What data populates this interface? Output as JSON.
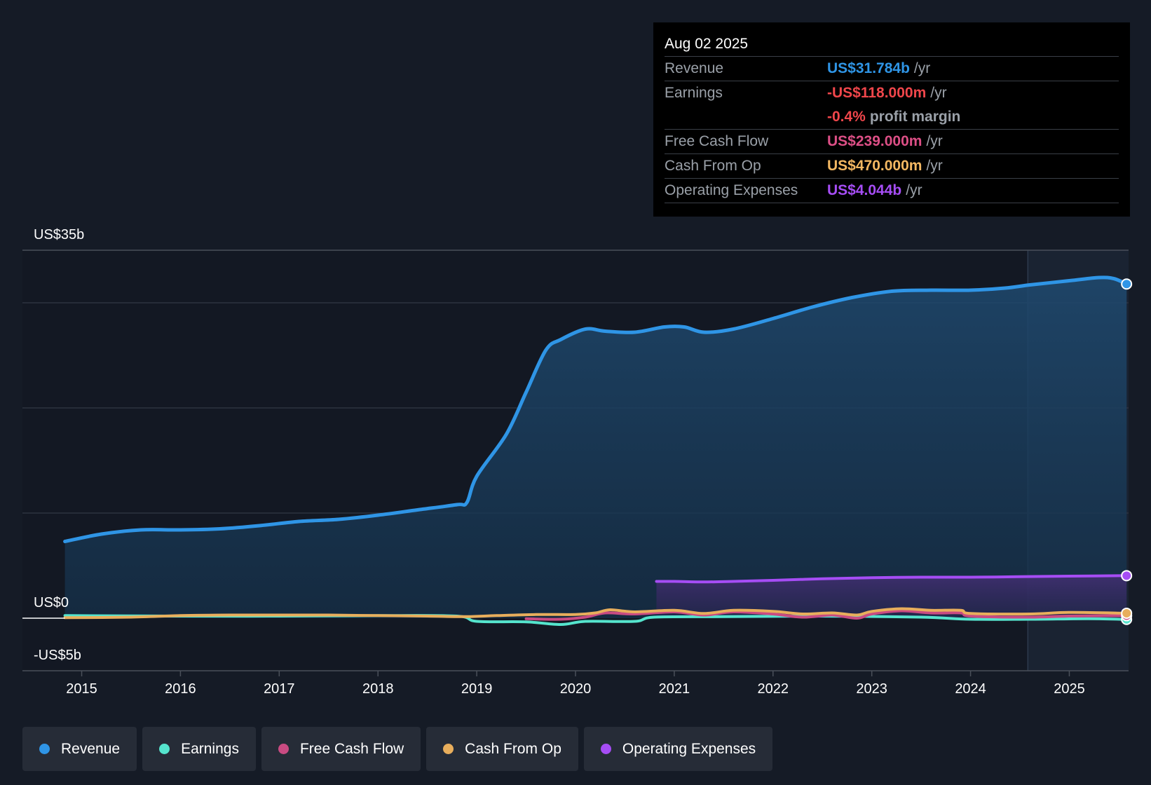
{
  "tooltip": {
    "date": "Aug 02 2025",
    "rows": [
      {
        "label": "Revenue",
        "value": "US$31.784b",
        "unit": "/yr",
        "color": "#2f95e6"
      },
      {
        "label": "Earnings",
        "value": "-US$118.000m",
        "unit": "/yr",
        "color": "#f0464b"
      },
      {
        "label": "",
        "value": "-0.4%",
        "unit": "profit margin",
        "color": "#f0464b"
      },
      {
        "label": "Free Cash Flow",
        "value": "US$239.000m",
        "unit": "/yr",
        "color": "#dd4f86"
      },
      {
        "label": "Cash From Op",
        "value": "US$470.000m",
        "unit": "/yr",
        "color": "#f4b862"
      },
      {
        "label": "Operating Expenses",
        "value": "US$4.044b",
        "unit": "/yr",
        "color": "#a64df5"
      }
    ]
  },
  "legend": [
    {
      "label": "Revenue",
      "color": "#2f95e6"
    },
    {
      "label": "Earnings",
      "color": "#55e4cd"
    },
    {
      "label": "Free Cash Flow",
      "color": "#c94b82"
    },
    {
      "label": "Cash From Op",
      "color": "#e8ae5c"
    },
    {
      "label": "Operating Expenses",
      "color": "#a64df5"
    }
  ],
  "chart_data": {
    "type": "line",
    "title": "",
    "xlabel": "",
    "ylabel": "",
    "ylim": [
      -5,
      35
    ],
    "y_tick_labels": [
      "US$35b",
      "US$0",
      "-US$5b"
    ],
    "y_tick_values": [
      35,
      0,
      -5
    ],
    "x_tick_labels": [
      "2015",
      "2016",
      "2017",
      "2018",
      "2019",
      "2020",
      "2021",
      "2022",
      "2023",
      "2024",
      "2025"
    ],
    "x_tick_values": [
      2015,
      2016,
      2017,
      2018,
      2019,
      2020,
      2021,
      2022,
      2023,
      2024,
      2025
    ],
    "xlim": [
      2014.4,
      2025.6
    ],
    "forecast_start": 2024.58,
    "series": [
      {
        "name": "Revenue",
        "color": "#2f95e6",
        "x": [
          2014.83,
          2015.2,
          2015.6,
          2016.0,
          2016.4,
          2016.8,
          2017.2,
          2017.6,
          2018.0,
          2018.4,
          2018.8,
          2018.9,
          2019.0,
          2019.3,
          2019.5,
          2019.7,
          2019.85,
          2020.1,
          2020.3,
          2020.6,
          2020.9,
          2021.1,
          2021.3,
          2021.6,
          2022.0,
          2022.4,
          2022.8,
          2023.2,
          2023.6,
          2024.0,
          2024.35,
          2024.6,
          2025.0,
          2025.3,
          2025.45,
          2025.58
        ],
        "values": [
          7.3,
          8.0,
          8.4,
          8.4,
          8.5,
          8.8,
          9.2,
          9.4,
          9.8,
          10.3,
          10.8,
          11.0,
          13.5,
          17.5,
          21.5,
          25.5,
          26.5,
          27.5,
          27.3,
          27.2,
          27.7,
          27.7,
          27.2,
          27.5,
          28.5,
          29.6,
          30.5,
          31.1,
          31.2,
          31.2,
          31.4,
          31.7,
          32.1,
          32.4,
          32.3,
          31.784
        ]
      },
      {
        "name": "Earnings",
        "color": "#55e4cd",
        "x": [
          2014.83,
          2016.0,
          2017.0,
          2018.0,
          2018.8,
          2019.0,
          2019.5,
          2019.85,
          2020.1,
          2020.6,
          2020.8,
          2021.5,
          2022.5,
          2023.5,
          2024.0,
          2024.6,
          2025.2,
          2025.58
        ],
        "values": [
          0.25,
          0.2,
          0.2,
          0.25,
          0.2,
          -0.3,
          -0.35,
          -0.6,
          -0.3,
          -0.3,
          0.1,
          0.15,
          0.2,
          0.1,
          -0.1,
          -0.1,
          -0.05,
          -0.118
        ]
      },
      {
        "name": "Free Cash Flow",
        "color": "#c94b82",
        "x": [
          2019.5,
          2019.85,
          2020.1,
          2020.3,
          2020.6,
          2021.0,
          2021.3,
          2021.6,
          2022.0,
          2022.3,
          2022.6,
          2022.85,
          2023.0,
          2023.3,
          2023.6,
          2023.9,
          2024.0,
          2024.6,
          2025.0,
          2025.58
        ],
        "values": [
          -0.05,
          -0.1,
          0.1,
          0.5,
          0.4,
          0.6,
          0.3,
          0.6,
          0.4,
          0.1,
          0.3,
          0.0,
          0.4,
          0.7,
          0.5,
          0.5,
          0.2,
          0.1,
          0.2,
          0.239
        ]
      },
      {
        "name": "Cash From Op",
        "color": "#e8ae5c",
        "x": [
          2014.83,
          2015.5,
          2016.0,
          2016.5,
          2017.0,
          2017.5,
          2018.0,
          2018.5,
          2018.9,
          2019.2,
          2019.6,
          2020.0,
          2020.2,
          2020.35,
          2020.6,
          2021.0,
          2021.3,
          2021.6,
          2022.0,
          2022.3,
          2022.6,
          2022.85,
          2023.0,
          2023.3,
          2023.6,
          2023.9,
          2024.0,
          2024.6,
          2025.0,
          2025.58
        ],
        "values": [
          0.05,
          0.1,
          0.25,
          0.3,
          0.3,
          0.3,
          0.25,
          0.2,
          0.15,
          0.25,
          0.35,
          0.35,
          0.5,
          0.8,
          0.6,
          0.75,
          0.45,
          0.75,
          0.65,
          0.4,
          0.5,
          0.3,
          0.65,
          0.9,
          0.75,
          0.75,
          0.45,
          0.4,
          0.55,
          0.47
        ]
      },
      {
        "name": "Operating Expenses",
        "color": "#a64df5",
        "x": [
          2020.82,
          2021.0,
          2021.3,
          2021.6,
          2022.0,
          2022.5,
          2023.0,
          2023.5,
          2024.0,
          2024.5,
          2025.0,
          2025.58
        ],
        "values": [
          3.5,
          3.5,
          3.45,
          3.5,
          3.6,
          3.75,
          3.85,
          3.9,
          3.9,
          3.95,
          4.0,
          4.044
        ]
      }
    ]
  }
}
